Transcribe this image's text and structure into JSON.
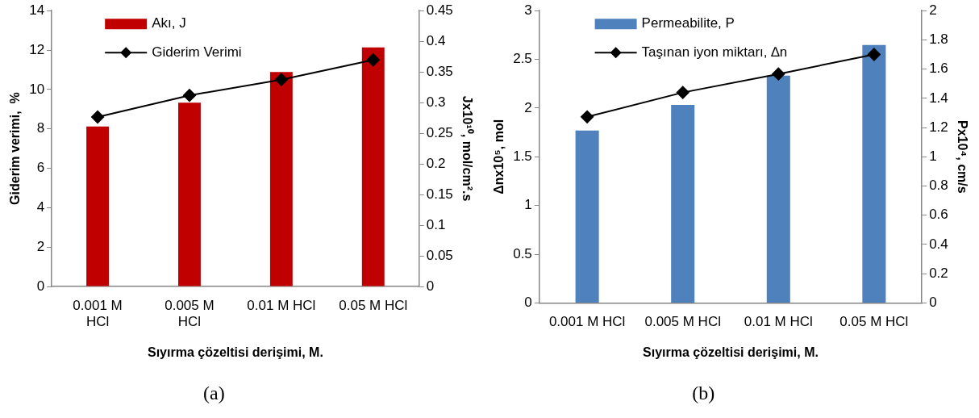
{
  "chart_data": [
    {
      "type": "bar",
      "categories": [
        "0.001 M HCl",
        "0.005 M HCl",
        "0.01 M HCl",
        "0.05 M HCl"
      ],
      "xlabel": "Sıyırma çözeltisi derişimi, M.",
      "ylabel": "Giderim verimi,  %",
      "y2label": "Jx10¹⁰, mol/cm².s",
      "ylim": [
        0,
        14
      ],
      "yticks": [
        0,
        2,
        4,
        6,
        8,
        10,
        12,
        14
      ],
      "y2lim": [
        0,
        0.45
      ],
      "y2ticks": [
        0,
        0.05,
        0.1,
        0.15,
        0.2,
        0.25,
        0.3,
        0.35,
        0.4,
        0.45
      ],
      "grid": false,
      "legend": "top left",
      "marker": "diamond",
      "annotations": [
        "(a)"
      ],
      "series": [
        {
          "name": "Akı, J",
          "axis": "y2",
          "color": "#c00000",
          "values": [
            0.261,
            0.3,
            0.35,
            0.39
          ]
        },
        {
          "name": "Giderim Verimi",
          "type": "line",
          "color": "#000000",
          "values": [
            8.6,
            9.7,
            10.5,
            11.5
          ]
        }
      ]
    },
    {
      "type": "bar",
      "categories": [
        "0.001 M HCl",
        "0.005 M HCl",
        "0.01 M HCl",
        "0.05 M HCl"
      ],
      "xlabel": "Sıyırma çözeltisi derişimi, M.",
      "ylabel": "Δnx10⁵, mol",
      "y2label": "Px10⁴, cm/s",
      "ylim": [
        0,
        3
      ],
      "yticks": [
        0,
        0.5,
        1,
        1.5,
        2,
        2.5,
        3
      ],
      "y2lim": [
        0,
        2
      ],
      "y2ticks": [
        0,
        0.2,
        0.4,
        0.6,
        0.8,
        1,
        1.2,
        1.4,
        1.6,
        1.8,
        2
      ],
      "grid": false,
      "legend": "top left",
      "marker": "diamond",
      "annotations": [
        "(b)"
      ],
      "series": [
        {
          "name": "Permeabilite, P",
          "axis": "y2",
          "color": "#4f81bd",
          "values": [
            1.18,
            1.355,
            1.555,
            1.765
          ]
        },
        {
          "name": "Taşınan iyon miktarı, ∆n",
          "type": "line",
          "color": "#000000",
          "values": [
            1.91,
            2.16,
            2.35,
            2.55
          ]
        }
      ]
    }
  ]
}
